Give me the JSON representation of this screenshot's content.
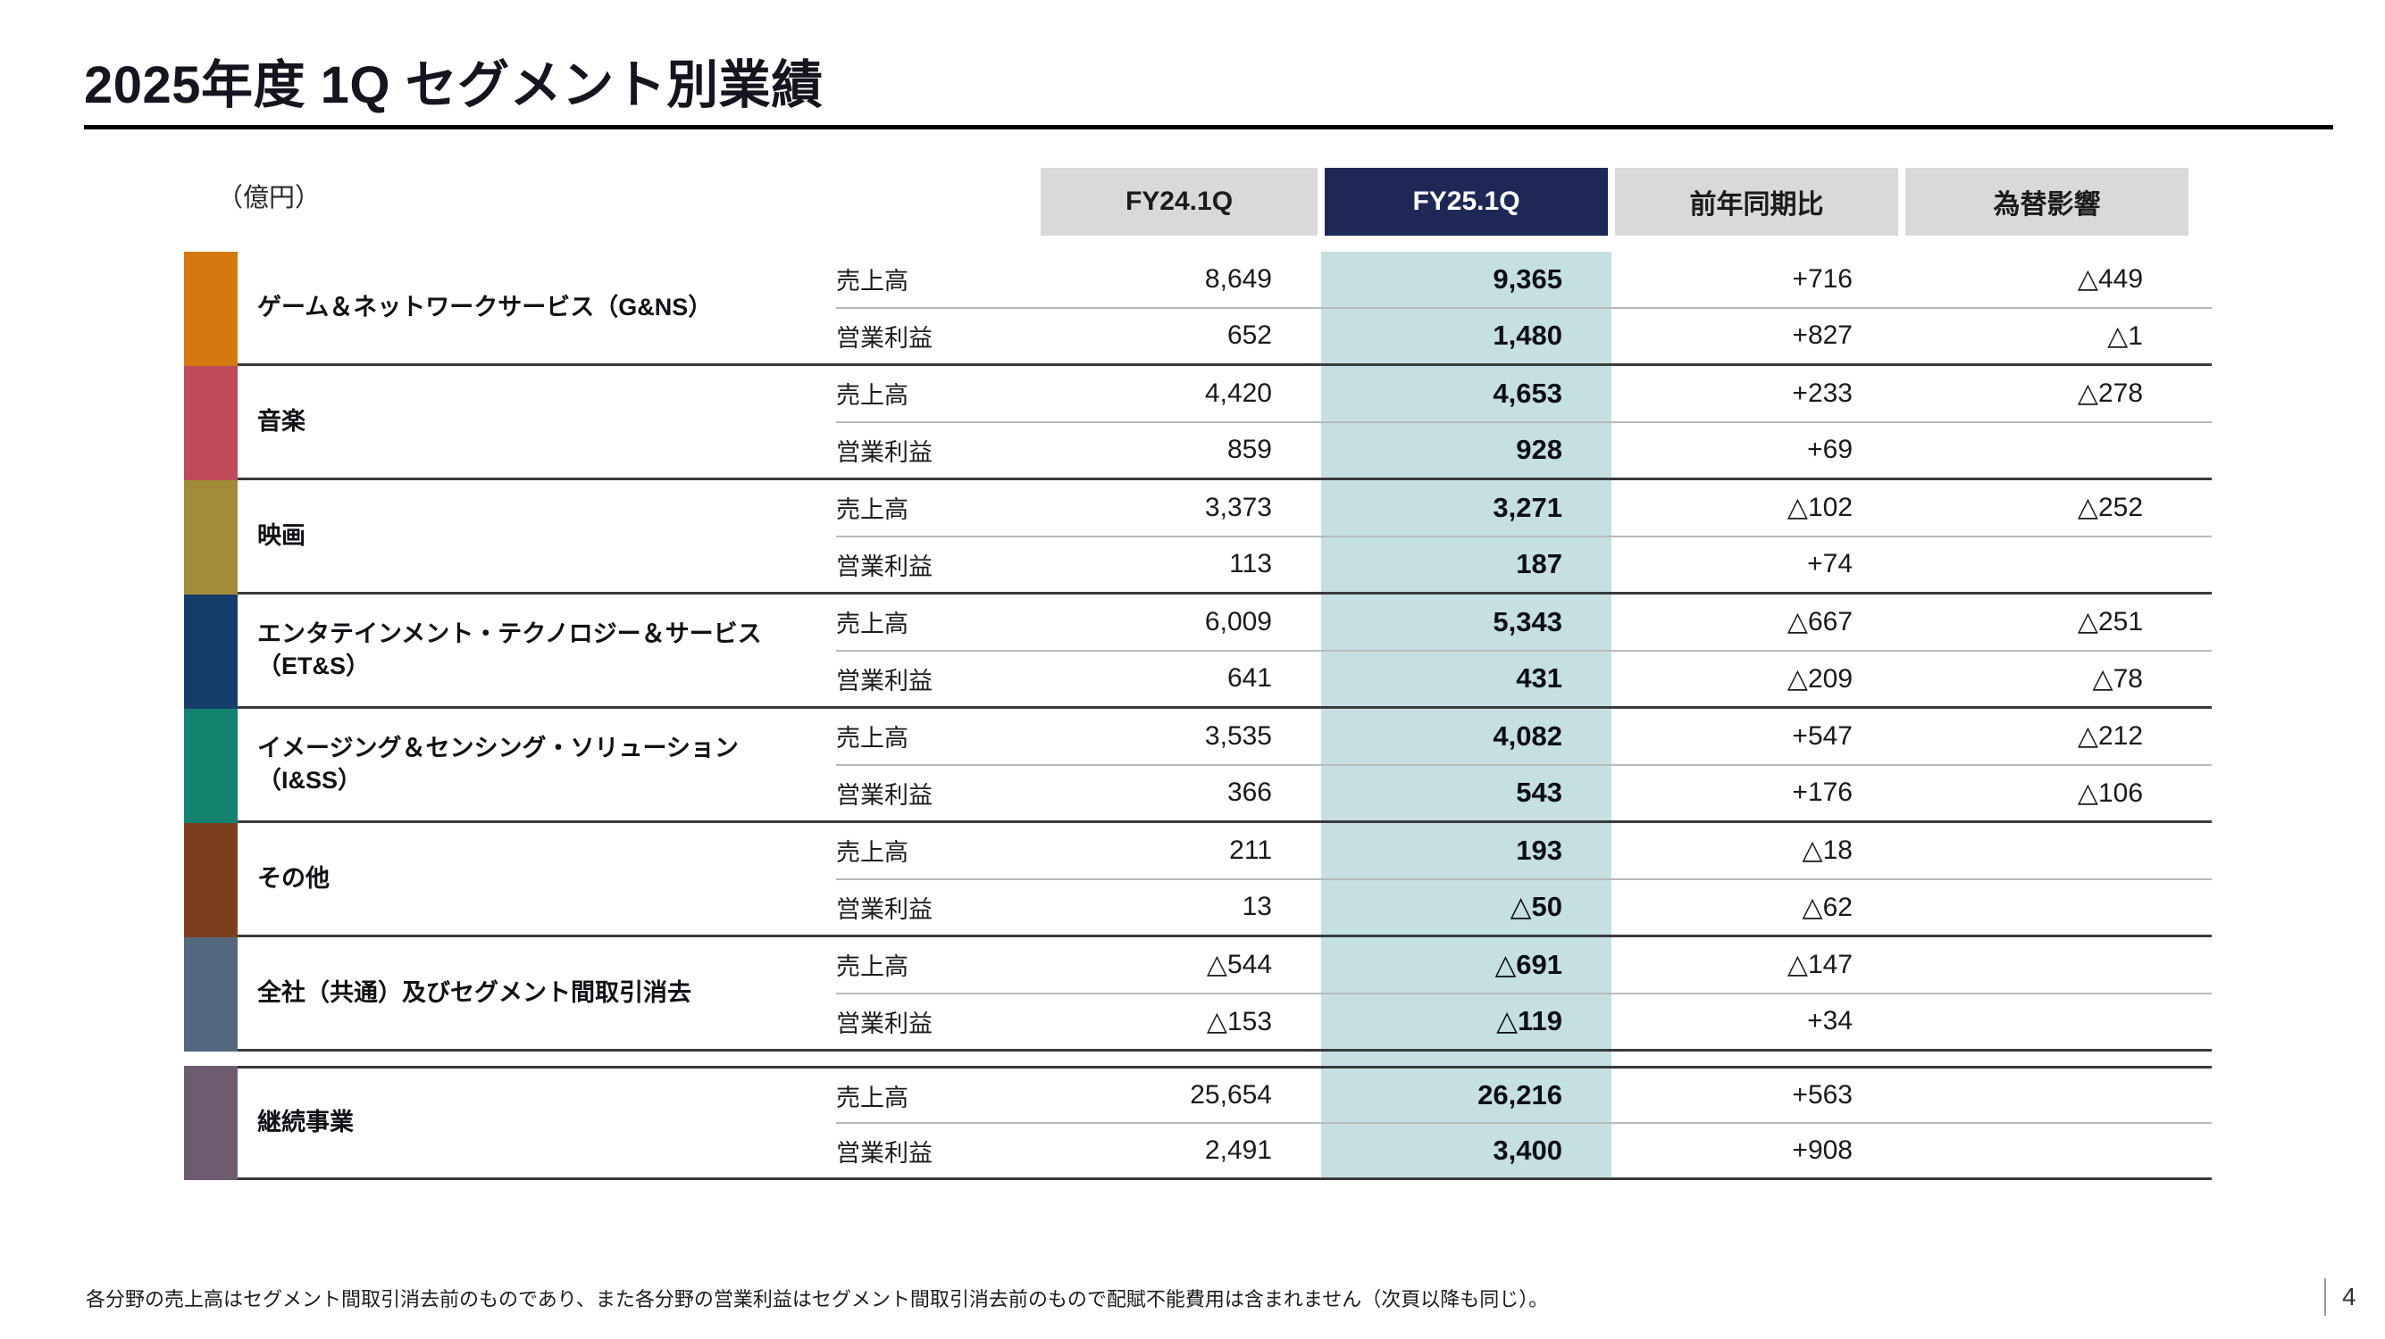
{
  "slide": {
    "title": "2025年度 1Q セグメント別業績",
    "unit_label": "（億円）",
    "footnote": "各分野の売上高はセグメント間取引消去前のものであり、また各分野の営業利益はセグメント間取引消去前のもので配賦不能費用は含まれません（次頁以降も同じ）。",
    "page_number": "4"
  },
  "colors": {
    "header_cell_bg": "#d9d9d9",
    "highlight_header_bg": "#1e2857",
    "highlight_column_bg": "#c4e0e3"
  },
  "table": {
    "column_headers": [
      "FY24.1Q",
      "FY25.1Q",
      "前年同期比",
      "為替影響"
    ],
    "segments": [
      {
        "name": "ゲーム＆ネットワークサービス（G&NS）",
        "color": "#d5790f",
        "rows": [
          {
            "label": "売上高",
            "values": [
              "8,649",
              "9,365",
              "+716",
              "△449"
            ]
          },
          {
            "label": "営業利益",
            "values": [
              "652",
              "1,480",
              "+827",
              "△1"
            ]
          }
        ]
      },
      {
        "name": "音楽",
        "color": "#bf4b5a",
        "rows": [
          {
            "label": "売上高",
            "values": [
              "4,420",
              "4,653",
              "+233",
              "△278"
            ]
          },
          {
            "label": "営業利益",
            "values": [
              "859",
              "928",
              "+69",
              ""
            ]
          }
        ]
      },
      {
        "name": "映画",
        "color": "#a28c39",
        "rows": [
          {
            "label": "売上高",
            "values": [
              "3,373",
              "3,271",
              "△102",
              "△252"
            ]
          },
          {
            "label": "営業利益",
            "values": [
              "113",
              "187",
              "+74",
              ""
            ]
          }
        ]
      },
      {
        "name": "エンタテインメント・テクノロジー＆サービス",
        "name_line2": "（ET&S）",
        "color": "#163c6b",
        "rows": [
          {
            "label": "売上高",
            "values": [
              "6,009",
              "5,343",
              "△667",
              "△251"
            ]
          },
          {
            "label": "営業利益",
            "values": [
              "641",
              "431",
              "△209",
              "△78"
            ]
          }
        ]
      },
      {
        "name": "イメージング＆センシング・ソリューション",
        "name_line2": "（I&SS）",
        "color": "#12826e",
        "rows": [
          {
            "label": "売上高",
            "values": [
              "3,535",
              "4,082",
              "+547",
              "△212"
            ]
          },
          {
            "label": "営業利益",
            "values": [
              "366",
              "543",
              "+176",
              "△106"
            ]
          }
        ]
      },
      {
        "name": "その他",
        "color": "#7d3e1e",
        "rows": [
          {
            "label": "売上高",
            "values": [
              "211",
              "193",
              "△18",
              ""
            ]
          },
          {
            "label": "営業利益",
            "values": [
              "13",
              "△50",
              "△62",
              ""
            ]
          }
        ]
      },
      {
        "name": "全社（共通）及びセグメント間取引消去",
        "color": "#53687f",
        "rows": [
          {
            "label": "売上高",
            "values": [
              "△544",
              "△691",
              "△147",
              ""
            ]
          },
          {
            "label": "営業利益",
            "values": [
              "△153",
              "△119",
              "+34",
              ""
            ]
          }
        ]
      },
      {
        "name": "継続事業",
        "color": "#6e5b70",
        "rows": [
          {
            "label": "売上高",
            "values": [
              "25,654",
              "26,216",
              "+563",
              ""
            ]
          },
          {
            "label": "営業利益",
            "values": [
              "2,491",
              "3,400",
              "+908",
              ""
            ]
          }
        ]
      }
    ]
  }
}
